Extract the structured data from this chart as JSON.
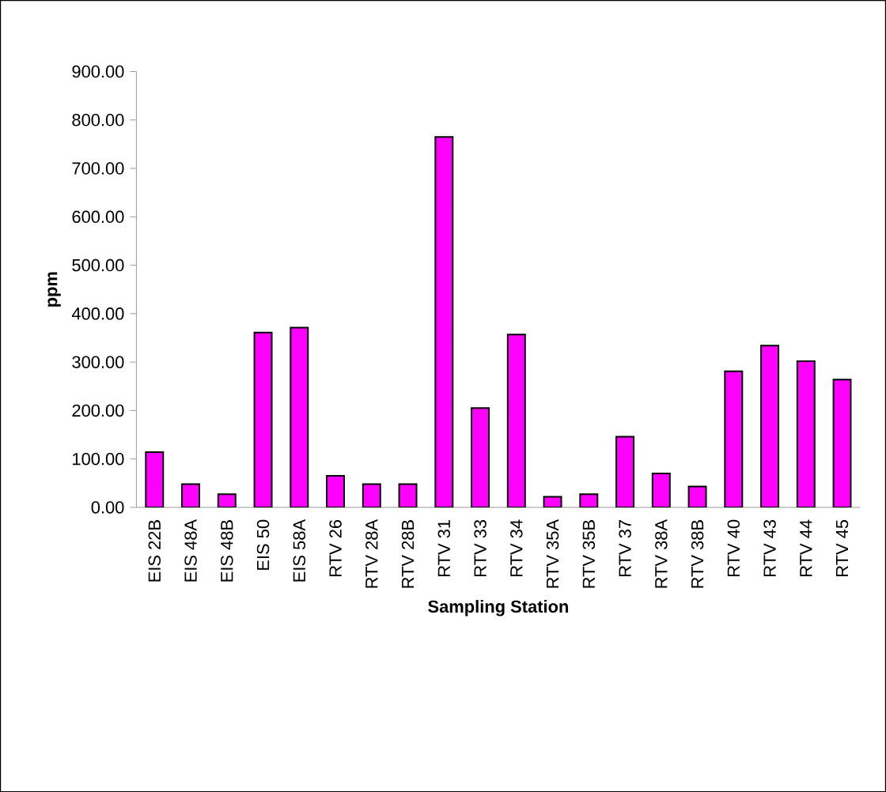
{
  "chart_data": {
    "type": "bar",
    "xlabel": "Sampling Station",
    "ylabel": "ppm",
    "categories": [
      "EIS 22B",
      "EIS 48A",
      "EIS 48B",
      "EIS 50",
      "EIS 58A",
      "RTV 26",
      "RTV 28A",
      "RTV 28B",
      "RTV 31",
      "RTV 33",
      "RTV 34",
      "RTV 35A",
      "RTV 35B",
      "RTV 37",
      "RTV 38A",
      "RTV 38B",
      "RTV 40",
      "RTV 43",
      "RTV 44",
      "RTV 45"
    ],
    "values": [
      114,
      48,
      27,
      361,
      371,
      65,
      48,
      48,
      765,
      205,
      357,
      22,
      27,
      146,
      70,
      43,
      281,
      334,
      302,
      264
    ],
    "color": "#ff00ff",
    "ylim": [
      0,
      900
    ],
    "yticks": [
      {
        "value": 0,
        "label": "0.00"
      },
      {
        "value": 100,
        "label": "100.00"
      },
      {
        "value": 200,
        "label": "200.00"
      },
      {
        "value": 300,
        "label": "300.00"
      },
      {
        "value": 400,
        "label": "400.00"
      },
      {
        "value": 500,
        "label": "500.00"
      },
      {
        "value": 600,
        "label": "600.00"
      },
      {
        "value": 700,
        "label": "700.00"
      },
      {
        "value": 800,
        "label": "800.00"
      },
      {
        "value": 900,
        "label": "900.00"
      }
    ],
    "grid": false
  }
}
